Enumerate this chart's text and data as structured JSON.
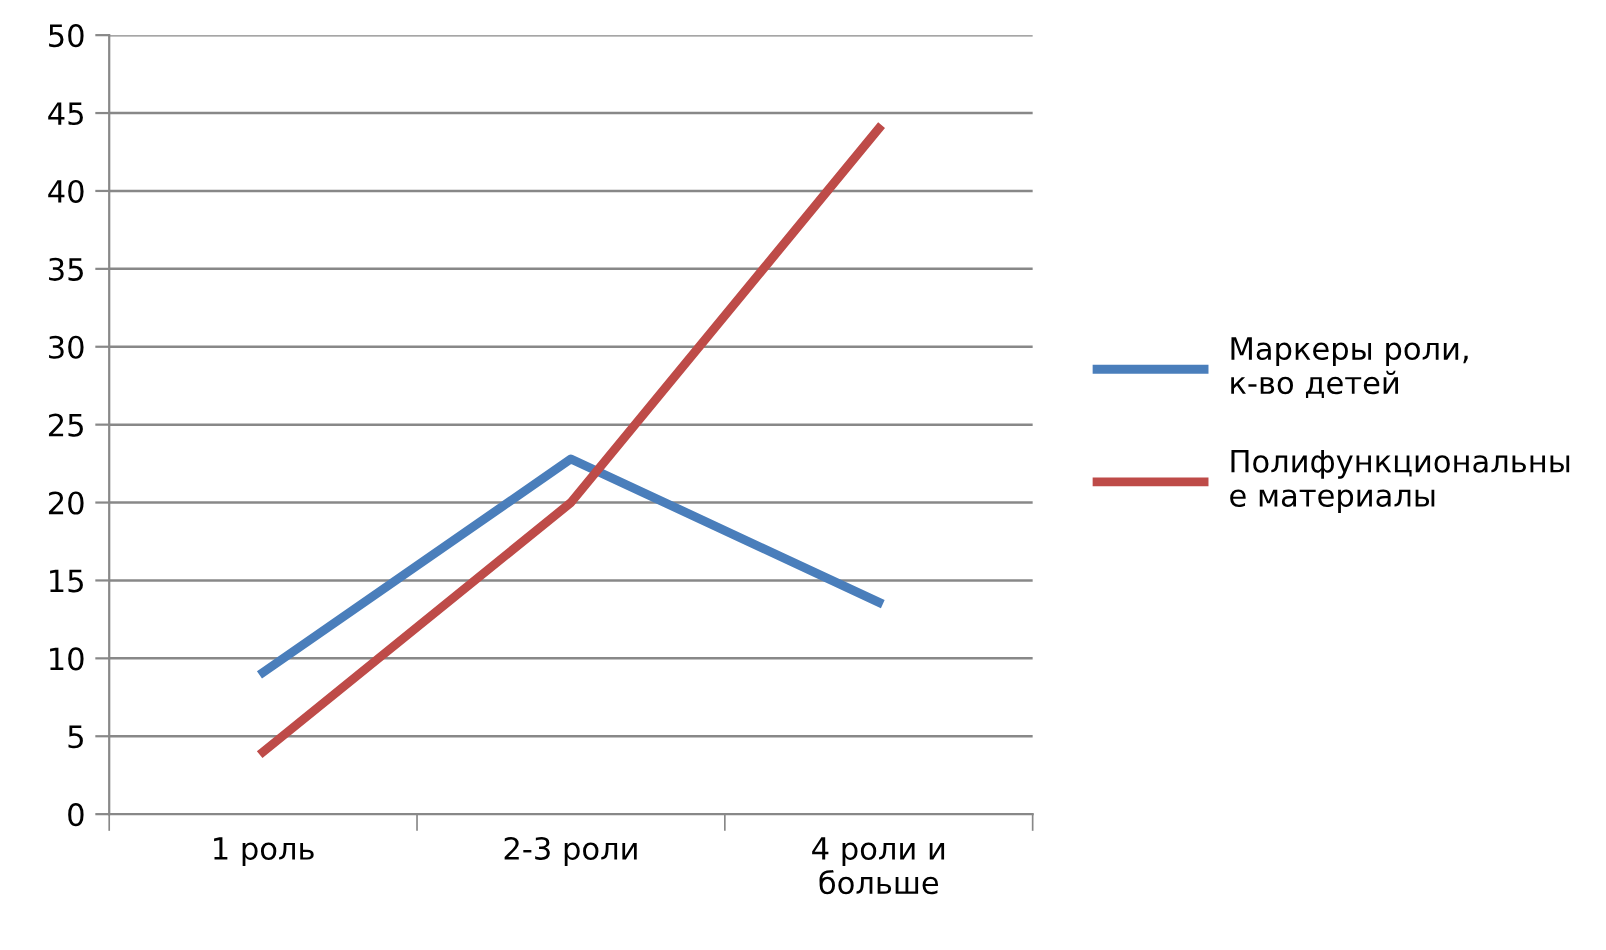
{
  "chart_data": {
    "type": "line",
    "categories": [
      "1 роль",
      "2-3 роли",
      "4 роли и больше"
    ],
    "series": [
      {
        "name": "Маркеры роли, к-во детей",
        "color": "#4a7ebb",
        "values": [
          9.1,
          22.8,
          13.6
        ]
      },
      {
        "name": "Полифункциональные материалы",
        "color": "#be4b48",
        "values": [
          4,
          20,
          44
        ]
      }
    ],
    "ylim": [
      0,
      50
    ],
    "yticks": [
      0,
      5,
      10,
      15,
      20,
      25,
      30,
      35,
      40,
      45,
      50
    ],
    "grid": "y",
    "legend": "right",
    "marker": "none",
    "line_style": "solid"
  }
}
